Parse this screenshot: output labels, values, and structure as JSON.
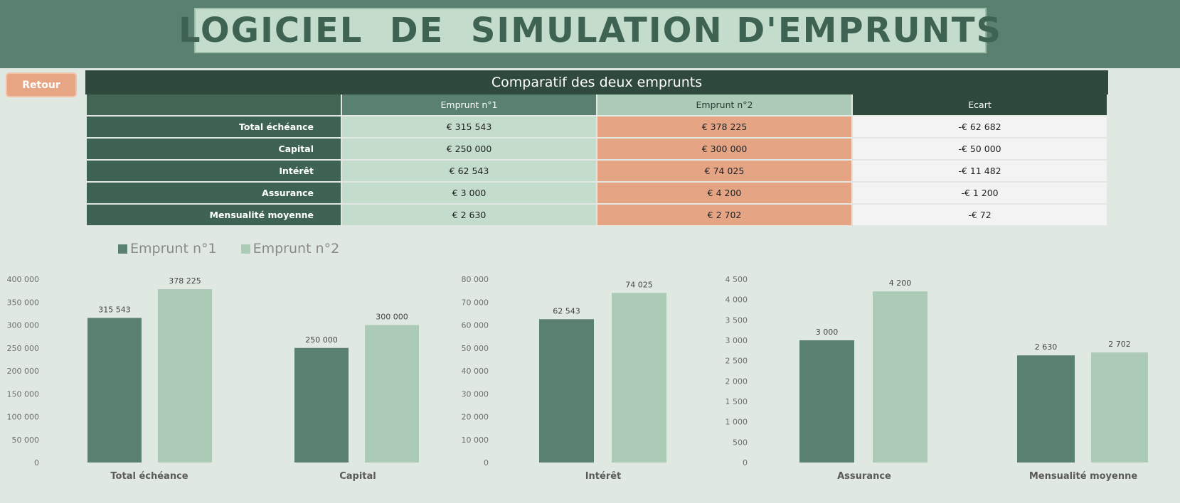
{
  "header": {
    "title": "LOGICIEL  DE  SIMULATION D'EMPRUNTS"
  },
  "nav": {
    "back_label": "Retour"
  },
  "comparison": {
    "caption": "Comparatif des deux emprunts",
    "columns": [
      "Emprunt n°1",
      "Emprunt n°2",
      "Ecart"
    ],
    "rows": [
      {
        "label": "Total échéance",
        "e1": "€ 315 543",
        "e2": "€ 378 225",
        "ecart": "-€ 62 682"
      },
      {
        "label": "Capital",
        "e1": "€ 250 000",
        "e2": "€ 300 000",
        "ecart": "-€ 50 000"
      },
      {
        "label": "Intérêt",
        "e1": "€ 62 543",
        "e2": "€ 74 025",
        "ecart": "-€ 11 482"
      },
      {
        "label": "Assurance",
        "e1": "€ 3 000",
        "e2": "€ 4 200",
        "ecart": "-€ 1 200"
      },
      {
        "label": "Mensualité moyenne",
        "e1": "€ 2 630",
        "e2": "€ 2 702",
        "ecart": "-€ 72"
      }
    ]
  },
  "colors": {
    "series1": "#5a806f",
    "series2": "#accbb6"
  },
  "chart_data": [
    {
      "type": "bar",
      "categories": [
        "Total échéance"
      ],
      "series": [
        {
          "name": "Emprunt n°1",
          "values": [
            315543
          ]
        },
        {
          "name": "Emprunt n°2",
          "values": [
            378225
          ]
        }
      ],
      "ylim": [
        0,
        400000
      ],
      "ytick_step": 50000,
      "ytick_labels": [
        "0",
        "50 000",
        "100 000",
        "150 000",
        "200 000",
        "250 000",
        "300 000",
        "350 000",
        "400 000"
      ],
      "data_labels": [
        "315 543",
        "378 225"
      ],
      "legend": "top-left"
    },
    {
      "type": "bar",
      "categories": [
        "Capital"
      ],
      "series": [
        {
          "name": "Emprunt n°1",
          "values": [
            250000
          ]
        },
        {
          "name": "Emprunt n°2",
          "values": [
            300000
          ]
        }
      ],
      "ylim": [
        0,
        400000
      ],
      "data_labels": [
        "250 000",
        "300 000"
      ]
    },
    {
      "type": "bar",
      "categories": [
        "Intérêt"
      ],
      "series": [
        {
          "name": "Emprunt n°1",
          "values": [
            62543
          ]
        },
        {
          "name": "Emprunt n°2",
          "values": [
            74025
          ]
        }
      ],
      "ylim": [
        0,
        80000
      ],
      "ytick_step": 10000,
      "ytick_labels": [
        "0",
        "10 000",
        "20 000",
        "30 000",
        "40 000",
        "50 000",
        "60 000",
        "70 000",
        "80 000"
      ],
      "data_labels": [
        "62 543",
        "74 025"
      ]
    },
    {
      "type": "bar",
      "categories": [
        "Assurance"
      ],
      "series": [
        {
          "name": "Emprunt n°1",
          "values": [
            3000
          ]
        },
        {
          "name": "Emprunt n°2",
          "values": [
            4200
          ]
        }
      ],
      "ylim": [
        0,
        4500
      ],
      "ytick_step": 500,
      "ytick_labels": [
        "0",
        "500",
        "1 000",
        "1 500",
        "2 000",
        "2 500",
        "3 000",
        "3 500",
        "4 000",
        "4 500"
      ],
      "data_labels": [
        "3 000",
        "4 200"
      ]
    },
    {
      "type": "bar",
      "categories": [
        "Mensualité moyenne"
      ],
      "series": [
        {
          "name": "Emprunt n°1",
          "values": [
            2630
          ]
        },
        {
          "name": "Emprunt n°2",
          "values": [
            2702
          ]
        }
      ],
      "ylim": [
        0,
        4500
      ],
      "data_labels": [
        "2 630",
        "2 702"
      ]
    }
  ]
}
